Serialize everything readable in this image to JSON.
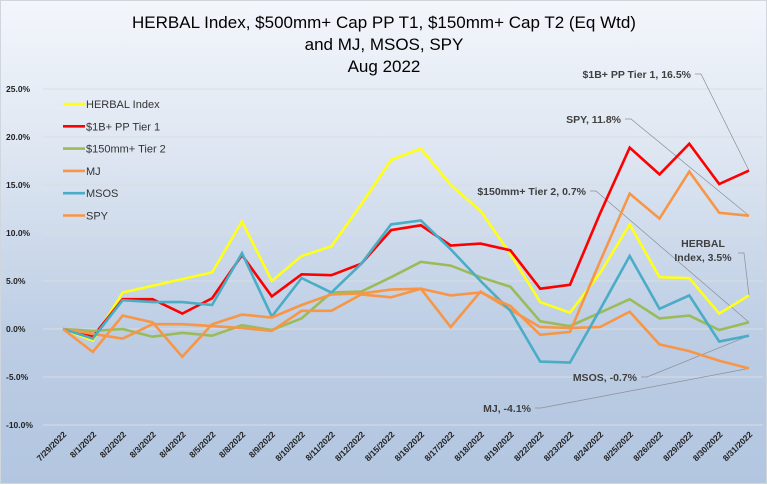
{
  "chart_data": {
    "type": "line",
    "title": [
      "HERBAL Index, $500mm+ Cap PP T1, $150mm+ Cap T2  (Eq Wtd)",
      "and MJ, MSOS, SPY",
      "Aug 2022"
    ],
    "xlabel": "",
    "ylabel": "",
    "ylim": [
      -10,
      25
    ],
    "yticks": [
      "25.0%",
      "20.0%",
      "15.0%",
      "10.0%",
      "5.0%",
      "0.0%",
      "-5.0%",
      "-10.0%"
    ],
    "ytick_values": [
      25,
      20,
      15,
      10,
      5,
      0,
      -5,
      -10
    ],
    "grid": true,
    "legend_position": "top-left",
    "categories": [
      "7/29/2022",
      "8/1/2022",
      "8/2/2022",
      "8/3/2022",
      "8/4/2022",
      "8/5/2022",
      "8/8/2022",
      "8/9/2022",
      "8/10/2022",
      "8/11/2022",
      "8/12/2022",
      "8/15/2022",
      "8/16/2022",
      "8/17/2022",
      "8/18/2022",
      "8/19/2022",
      "8/22/2022",
      "8/23/2022",
      "8/24/2022",
      "8/25/2022",
      "8/26/2022",
      "8/29/2022",
      "8/30/2022",
      "8/31/2022"
    ],
    "series": [
      {
        "name": "HERBAL Index",
        "color": "#ffff1a",
        "values": [
          0,
          -1.2,
          3.8,
          4.5,
          5.2,
          5.9,
          11.2,
          5.0,
          7.6,
          8.6,
          13.0,
          17.6,
          18.8,
          15.0,
          12.3,
          7.8,
          2.8,
          1.7,
          5.8,
          10.9,
          5.4,
          5.3,
          1.6,
          3.5
        ]
      },
      {
        "name": "$1B+ PP Tier 1",
        "color": "#ff0000",
        "values": [
          0,
          -0.8,
          3.1,
          3.1,
          1.6,
          3.2,
          7.7,
          3.4,
          5.7,
          5.6,
          6.8,
          10.3,
          10.8,
          8.7,
          8.9,
          8.2,
          4.2,
          4.6,
          12.0,
          18.9,
          16.1,
          19.3,
          15.1,
          16.5
        ]
      },
      {
        "name": "$150mm+ Tier 2",
        "color": "#9bbb59",
        "values": [
          0,
          -0.2,
          0.0,
          -0.8,
          -0.4,
          -0.7,
          0.4,
          -0.1,
          1.1,
          3.8,
          3.9,
          5.4,
          7.0,
          6.6,
          5.4,
          4.4,
          0.8,
          0.3,
          1.7,
          3.1,
          1.1,
          1.4,
          -0.1,
          0.7
        ]
      },
      {
        "name": "MJ",
        "color": "#f79646",
        "values": [
          0,
          -0.5,
          -1.0,
          0.5,
          0.5,
          0.3,
          0.1,
          -0.2,
          1.9,
          1.9,
          3.6,
          3.3,
          4.2,
          0.2,
          3.9,
          2.0,
          0.2,
          0.1,
          0.2,
          1.8,
          -1.6,
          -2.3,
          -3.3,
          -4.1
        ]
      },
      {
        "name": "MSOS",
        "color": "#4bacc6",
        "values": [
          0,
          -1.0,
          3.0,
          2.8,
          2.8,
          2.5,
          7.9,
          1.3,
          5.3,
          3.8,
          6.8,
          10.9,
          11.3,
          8.3,
          5.0,
          1.9,
          -3.4,
          -3.5,
          2.0,
          7.6,
          2.1,
          3.5,
          -1.3,
          -0.7
        ]
      },
      {
        "name": "SPY",
        "color": "#f79646",
        "values": [
          0,
          -2.4,
          1.4,
          0.7,
          -2.9,
          0.5,
          1.5,
          1.2,
          2.5,
          3.6,
          3.7,
          4.1,
          4.2,
          3.5,
          3.8,
          2.4,
          -0.6,
          -0.3,
          7.0,
          14.1,
          11.5,
          16.4,
          12.1,
          11.8
        ]
      }
    ],
    "annotations": [
      {
        "text": "$1B+ PP Tier 1, 16.5%",
        "series": 1
      },
      {
        "text": "SPY, 11.8%",
        "series": 5
      },
      {
        "text": "$150mm+ Tier 2, 0.7%",
        "series": 2
      },
      {
        "text": [
          "HERBAL",
          "Index, 3.5%"
        ],
        "series": 0
      },
      {
        "text": "MSOS, -0.7%",
        "series": 4
      },
      {
        "text": "MJ, -4.1%",
        "series": 3
      }
    ]
  }
}
